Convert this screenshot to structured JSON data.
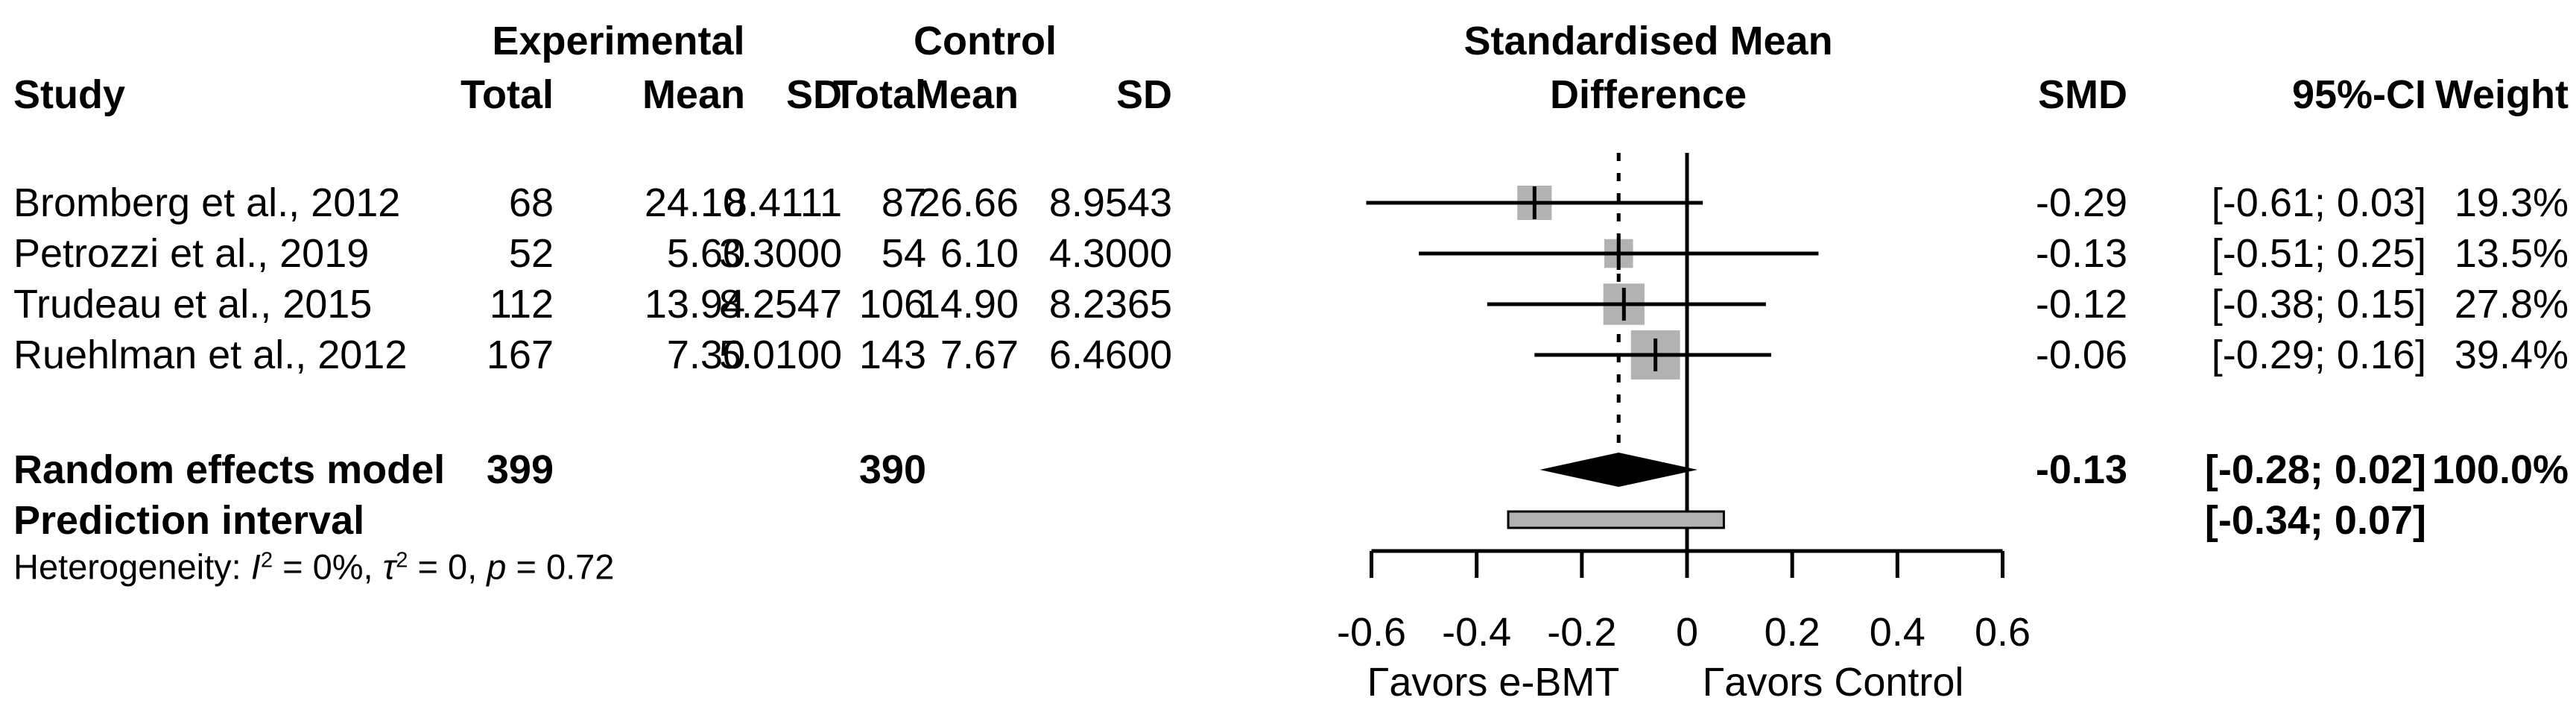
{
  "header": {
    "group_experimental": "Experimental",
    "group_control": "Control",
    "effect_line1": "Standardised Mean",
    "effect_line2": "Difference",
    "study": "Study",
    "exp_total": "Total",
    "exp_mean": "Mean",
    "exp_sd": "SD",
    "ctrl_total": "Total",
    "ctrl_mean": "Mean",
    "ctrl_sd": "SD",
    "smd": "SMD",
    "ci": "95%-CI",
    "weight": "Weight"
  },
  "table": {
    "rows": [
      {
        "study": "Bromberg et al., 2012",
        "exp_total": "68",
        "exp_mean": "24.10",
        "exp_sd": "8.4111",
        "ctrl_total": "87",
        "ctrl_mean": "26.66",
        "ctrl_sd": "8.9543",
        "smd": "-0.29",
        "ci": "[-0.61; 0.03]",
        "weight": "19.3%"
      },
      {
        "study": "Petrozzi et al., 2019",
        "exp_total": "52",
        "exp_mean": "5.60",
        "exp_sd": "3.3000",
        "ctrl_total": "54",
        "ctrl_mean": "6.10",
        "ctrl_sd": "4.3000",
        "smd": "-0.13",
        "ci": "[-0.51; 0.25]",
        "weight": "13.5%"
      },
      {
        "study": "Trudeau et al., 2015",
        "exp_total": "112",
        "exp_mean": "13.94",
        "exp_sd": "8.2547",
        "ctrl_total": "106",
        "ctrl_mean": "14.90",
        "ctrl_sd": "8.2365",
        "smd": "-0.12",
        "ci": "[-0.38; 0.15]",
        "weight": "27.8%"
      },
      {
        "study": "Ruehlman et al., 2012",
        "exp_total": "167",
        "exp_mean": "7.30",
        "exp_sd": "5.0100",
        "ctrl_total": "143",
        "ctrl_mean": "7.67",
        "ctrl_sd": "6.4600",
        "smd": "-0.06",
        "ci": "[-0.29; 0.16]",
        "weight": "39.4%"
      }
    ],
    "summary": {
      "label": "Random effects model",
      "exp_total": "399",
      "ctrl_total": "390",
      "smd": "-0.13",
      "ci": "[-0.28; 0.02]",
      "weight": "100.0%"
    },
    "prediction": {
      "label": "Prediction interval",
      "ci": "[-0.34; 0.07]"
    },
    "heterogeneity": {
      "prefix": "Heterogeneity: ",
      "i_sym": "I",
      "i_sup": "2",
      "mid1": " = 0%, ",
      "tau_sym": "τ",
      "tau_sup": "2",
      "mid2": " = 0, ",
      "p_sym": "p",
      "tail": " = 0.72"
    }
  },
  "chart_data": {
    "type": "forest",
    "title": "Standardised Mean Difference",
    "xlim": [
      -0.6,
      0.6
    ],
    "x_ticks": [
      -0.6,
      -0.4,
      -0.2,
      0,
      0.2,
      0.4,
      0.6
    ],
    "x_tick_labels": [
      "-0.6",
      "-0.4",
      "-0.2",
      "0",
      "0.2",
      "0.4",
      "0.6"
    ],
    "reference_line_x": 0,
    "dotted_line_x": -0.13,
    "favors_left": "Γavors e-BMT",
    "favors_right": "Γavors Control",
    "grid": false,
    "studies": [
      {
        "label": "Bromberg et al., 2012",
        "exp_total": 68,
        "exp_mean": 24.1,
        "exp_sd": 8.4111,
        "ctrl_total": 87,
        "ctrl_mean": 26.66,
        "ctrl_sd": 8.9543,
        "smd": -0.29,
        "ci": [
          -0.61,
          0.03
        ],
        "weight_pct": 19.3
      },
      {
        "label": "Petrozzi et al., 2019",
        "exp_total": 52,
        "exp_mean": 5.6,
        "exp_sd": 3.3,
        "ctrl_total": 54,
        "ctrl_mean": 6.1,
        "ctrl_sd": 4.3,
        "smd": -0.13,
        "ci": [
          -0.51,
          0.25
        ],
        "weight_pct": 13.5
      },
      {
        "label": "Trudeau et al., 2015",
        "exp_total": 112,
        "exp_mean": 13.94,
        "exp_sd": 8.2547,
        "ctrl_total": 106,
        "ctrl_mean": 14.9,
        "ctrl_sd": 8.2365,
        "smd": -0.12,
        "ci": [
          -0.38,
          0.15
        ],
        "weight_pct": 27.8
      },
      {
        "label": "Ruehlman et al., 2012",
        "exp_total": 167,
        "exp_mean": 7.3,
        "exp_sd": 5.01,
        "ctrl_total": 143,
        "ctrl_mean": 7.67,
        "ctrl_sd": 6.46,
        "smd": -0.06,
        "ci": [
          -0.29,
          0.16
        ],
        "weight_pct": 39.4
      }
    ],
    "summary": {
      "label": "Random effects model",
      "exp_total": 399,
      "ctrl_total": 390,
      "smd": -0.13,
      "ci": [
        -0.28,
        0.02
      ],
      "weight_pct": 100.0
    },
    "prediction_interval": {
      "ci": [
        -0.34,
        0.07
      ]
    },
    "heterogeneity_text": "Heterogeneity: I² = 0%, τ² = 0, p = 0.72",
    "colors": {
      "square_fill": "#b2b2b2",
      "diamond_fill": "#000000",
      "prediction_fill": "#b2b2b2",
      "line": "#000000"
    }
  }
}
